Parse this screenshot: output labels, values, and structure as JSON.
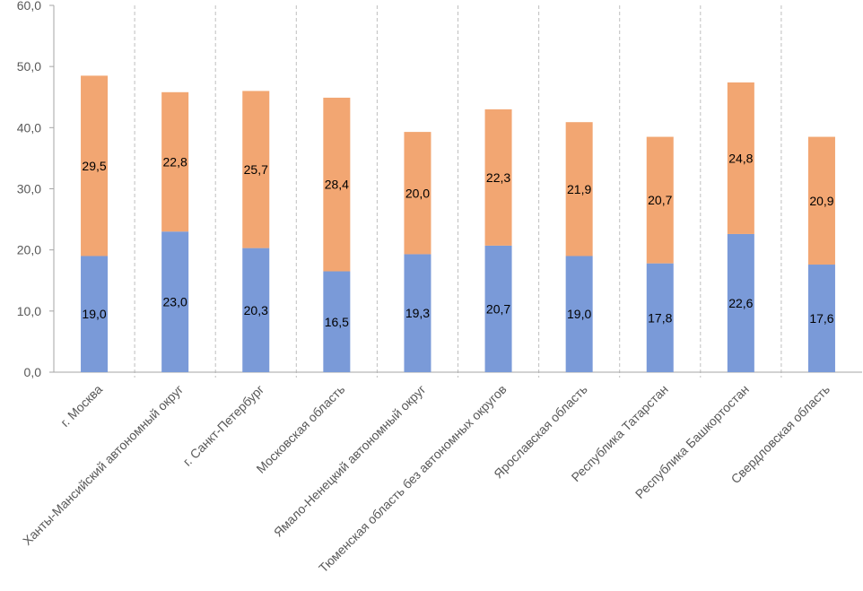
{
  "chart_data": {
    "type": "bar",
    "stacked": true,
    "title": "",
    "xlabel": "",
    "ylabel": "",
    "ylim": [
      0,
      60
    ],
    "yticks": [
      0,
      10,
      20,
      30,
      40,
      50,
      60
    ],
    "ytick_labels": [
      "0,0",
      "10,0",
      "20,0",
      "30,0",
      "40,0",
      "50,0",
      "60,0"
    ],
    "grid": "vertical dashed separators between categories",
    "categories": [
      "г. Москва",
      "Ханты-Мансийский автономный округ",
      "г. Санкт-Петербург",
      "Московская область",
      "Ямало-Ненецкий автономный округ",
      "Тюменская область без автономных округов",
      "Ярославская область",
      "Республика Татарстан",
      "Республика Башкортостан",
      "Свердловская область"
    ],
    "series": [
      {
        "name": "Series 1",
        "color": "#7a9ad8",
        "values": [
          19.0,
          23.0,
          20.3,
          16.5,
          19.3,
          20.7,
          19.0,
          17.8,
          22.6,
          17.6
        ],
        "labels": [
          "19,0",
          "23,0",
          "20,3",
          "16,5",
          "19,3",
          "20,7",
          "19,0",
          "17,8",
          "22,6",
          "17,6"
        ]
      },
      {
        "name": "Series 2",
        "color": "#f2a672",
        "values": [
          29.5,
          22.8,
          25.7,
          28.4,
          20.0,
          22.3,
          21.9,
          20.7,
          24.8,
          20.9
        ],
        "labels": [
          "29,5",
          "22,8",
          "25,7",
          "28,4",
          "20,0",
          "22,3",
          "21,9",
          "20,7",
          "24,8",
          "20,9"
        ]
      }
    ]
  }
}
